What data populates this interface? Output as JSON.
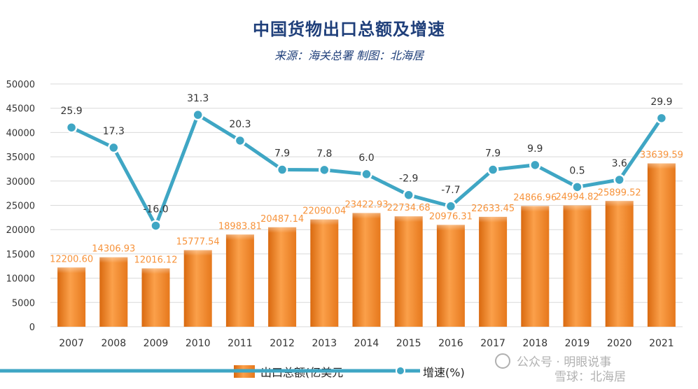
{
  "header": {
    "title": "中国货物出口总额及增速",
    "subtitle": "来源：海关总署  制图：北海居"
  },
  "chart_data": {
    "type": "bar",
    "categories": [
      "2007",
      "2008",
      "2009",
      "2010",
      "2011",
      "2012",
      "2013",
      "2014",
      "2015",
      "2016",
      "2017",
      "2018",
      "2019",
      "2020",
      "2021"
    ],
    "series": [
      {
        "name": "出口总额(亿美元",
        "type": "bar",
        "values": [
          12200.6,
          14306.93,
          12016.12,
          15777.54,
          18983.81,
          20487.14,
          22090.04,
          23422.93,
          22734.68,
          20976.31,
          22633.45,
          24866.96,
          24994.82,
          25899.52,
          33639.59
        ],
        "labels": [
          "12200.60",
          "14306.93",
          "12016.12",
          "15777.54",
          "18983.81",
          "20487.14",
          "22090.04",
          "23422.93",
          "22734.68",
          "20976.31",
          "22633.45",
          "24866.96",
          "24994.82",
          "25899.52",
          "33639.59"
        ],
        "color": "#f7933b"
      },
      {
        "name": "增速(%)",
        "type": "line",
        "values": [
          25.9,
          17.3,
          -16.0,
          31.3,
          20.3,
          7.9,
          7.8,
          6.0,
          -2.9,
          -7.7,
          7.9,
          9.9,
          0.5,
          3.6,
          29.9
        ],
        "labels": [
          "25.9",
          "17.3",
          "-16.0",
          "31.3",
          "20.3",
          "7.9",
          "7.8",
          "6.0",
          "-2.9",
          "-7.7",
          "7.9",
          "9.9",
          "0.5",
          "3.6",
          "29.9"
        ],
        "color": "#3fa6c4"
      }
    ],
    "ylim": [
      0,
      50000
    ],
    "yticks": [
      "0",
      "5000",
      "10000",
      "15000",
      "20000",
      "25000",
      "30000",
      "35000",
      "40000",
      "45000",
      "50000"
    ],
    "grid": true,
    "legend": "bottom"
  },
  "watermark": {
    "line1": "公众号 · 明眼说事",
    "line2": "雪球：北海居"
  }
}
